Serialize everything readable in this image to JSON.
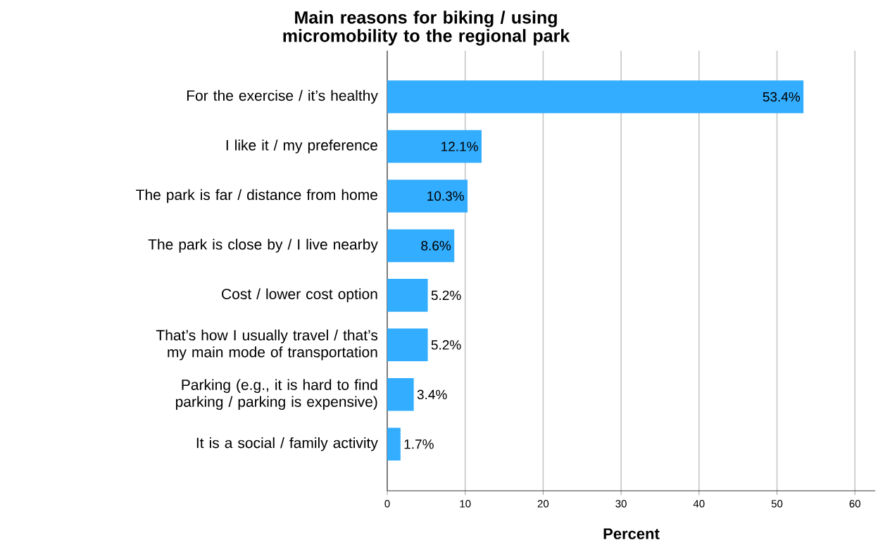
{
  "chart_data": {
    "type": "bar",
    "orientation": "horizontal",
    "title": "Main reasons for biking / using micromobility to the regional park",
    "xlabel": "Percent",
    "categories": [
      "For the exercise / it’s healthy",
      "I like it / my preference",
      "The park is far / distance from home",
      "The park is close by / I live nearby",
      "Cost / lower cost option",
      "That’s how I usually travel / that’s my main mode of transportation",
      "Parking (e.g., it is hard to find parking / parking is expensive)",
      "It is a social / family activity"
    ],
    "values": [
      53.4,
      12.1,
      10.3,
      8.6,
      5.2,
      5.2,
      3.4,
      1.7
    ],
    "value_labels": [
      "53.4%",
      "12.1%",
      "10.3%",
      "8.6%",
      "5.2%",
      "5.2%",
      "3.4%",
      "1.7%"
    ],
    "color": "#33adff",
    "xlim": [
      0,
      62.6
    ],
    "xticks": [
      0,
      10,
      20,
      30,
      40,
      50,
      60
    ],
    "grid": "x"
  }
}
